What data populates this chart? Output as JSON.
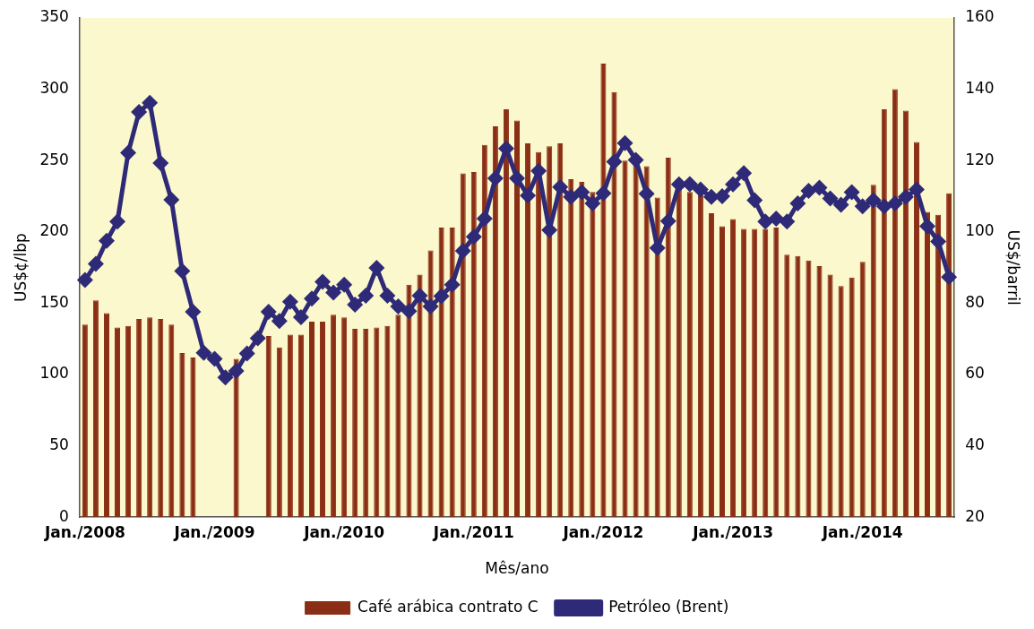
{
  "chart_data": {
    "type": "bar",
    "xlabel": "Mês/ano",
    "ylabel": "US$¢/lbp",
    "y2label": "US$/barril",
    "categories": [
      "Jan./2008",
      null,
      null,
      null,
      null,
      null,
      null,
      null,
      null,
      null,
      null,
      null,
      "Jan./2009",
      null,
      null,
      null,
      null,
      null,
      null,
      null,
      null,
      null,
      null,
      null,
      "Jan./2010",
      null,
      null,
      null,
      null,
      null,
      null,
      null,
      null,
      null,
      null,
      null,
      "Jan./2011",
      null,
      null,
      null,
      null,
      null,
      null,
      null,
      null,
      null,
      null,
      null,
      "Jan./2012",
      null,
      null,
      null,
      null,
      null,
      null,
      null,
      null,
      null,
      null,
      null,
      "Jan./2013",
      null,
      null,
      null,
      null,
      null,
      null,
      null,
      null,
      null,
      null,
      null,
      "Jan./2014",
      null,
      null,
      null,
      null,
      null,
      null,
      null,
      null
    ],
    "series": [
      {
        "name": "Café arábica contrato C",
        "color": "#8b2e16",
        "values": [
          135,
          152,
          143,
          133,
          134,
          139,
          140,
          139,
          135,
          115,
          112,
          null,
          null,
          null,
          111,
          null,
          null,
          127,
          119,
          128,
          128,
          137,
          137,
          142,
          140,
          132,
          132,
          133,
          134,
          142,
          163,
          170,
          187,
          203,
          203,
          241,
          242,
          261,
          274,
          286,
          278,
          262,
          256,
          260,
          262,
          237,
          235,
          228,
          318,
          298,
          250,
          247,
          246,
          224,
          252,
          230,
          228,
          226,
          213,
          204,
          209,
          202,
          202,
          202,
          203,
          184,
          183,
          180,
          176,
          170,
          162,
          168,
          179,
          233,
          286,
          300,
          285,
          263,
          214,
          212,
          227
        ]
      },
      {
        "name": "Petróleo (Brent)",
        "type": "line",
        "axis": "y2",
        "color": "#2e2a78",
        "marker": "diamond",
        "values": [
          86.5,
          91,
          97.5,
          102.9,
          122.2,
          133.6,
          136.2,
          119.3,
          109,
          89,
          77.6,
          66.1,
          64.4,
          59.2,
          61,
          65.9,
          70.2,
          77.6,
          75,
          80.4,
          76.1,
          81.3,
          86,
          83,
          85.2,
          79.6,
          82.1,
          89.9,
          82.1,
          79.1,
          77.8,
          82.1,
          79.1,
          82,
          85.2,
          94.7,
          98.6,
          103.7,
          115,
          123.4,
          115,
          110.2,
          117.1,
          100.5,
          112.6,
          109.8,
          111.1,
          108,
          110.8,
          119.7,
          124.9,
          120.2,
          110.7,
          95.5,
          103,
          113.3,
          113.4,
          111.9,
          109.8,
          110,
          113.3,
          116.5,
          108.9,
          102.9,
          103.7,
          102.9,
          108,
          111.5,
          112.4,
          109.4,
          107.6,
          111.1,
          107.2,
          108.9,
          107.2,
          108,
          109.8,
          111.9,
          101.6,
          97.3,
          87.3
        ]
      }
    ],
    "ylim": [
      0,
      350
    ],
    "yticks": [
      0,
      50,
      100,
      150,
      200,
      250,
      300,
      350
    ],
    "y2lim": [
      20,
      160
    ],
    "y2ticks": [
      20,
      40,
      60,
      80,
      100,
      120,
      140,
      160
    ],
    "grid": false,
    "legend": "bottom"
  }
}
